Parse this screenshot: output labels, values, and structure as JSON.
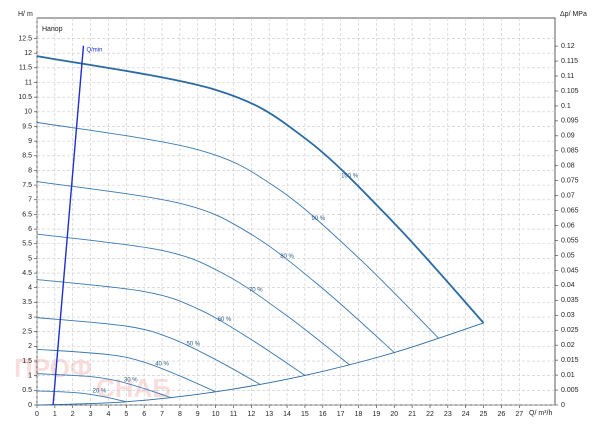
{
  "chart_data": {
    "type": "line",
    "title": "Напор",
    "xlabel": "Q/ m³/h",
    "ylabel": "H/ m",
    "y2label": "Δp/ MPa",
    "xlim": [
      0,
      29
    ],
    "ylim": [
      0,
      13.2
    ],
    "y2lim": [
      0,
      0.1294
    ],
    "xticks": [
      0,
      1,
      2,
      3,
      4,
      5,
      6,
      7,
      8,
      9,
      10,
      11,
      12,
      13,
      14,
      15,
      16,
      17,
      18,
      19,
      20,
      21,
      22,
      23,
      24,
      25,
      26,
      27
    ],
    "yticks": [
      0,
      0.5,
      1,
      1.5,
      2,
      2.5,
      3,
      3.5,
      4,
      4.5,
      5,
      5.5,
      6,
      6.5,
      7,
      7.5,
      8,
      8.5,
      9,
      9.5,
      10,
      10.5,
      11,
      11.5,
      12,
      12.5
    ],
    "y2ticks": [
      0,
      0.005,
      0.01,
      0.015,
      0.02,
      0.025,
      0.03,
      0.035,
      0.04,
      0.045,
      0.05,
      0.055,
      0.06,
      0.065,
      0.07,
      0.075,
      0.08,
      0.085,
      0.09,
      0.095,
      0.1,
      0.105,
      0.11,
      0.115,
      0.12
    ],
    "grid": true,
    "series": [
      {
        "name": "100 %",
        "color": "#2b6aa3",
        "x": [
          0,
          10,
          15,
          20,
          25
        ],
        "values": [
          11.9,
          10.75,
          9.1,
          6.2,
          2.8
        ]
      },
      {
        "name": "90 %",
        "color": "#3a78b0",
        "x": [
          0,
          9,
          13.5,
          18,
          22.5
        ],
        "values": [
          9.64,
          8.71,
          7.37,
          5.02,
          2.27
        ]
      },
      {
        "name": "80 %",
        "color": "#3a78b0",
        "x": [
          0,
          8,
          12,
          16,
          20
        ],
        "values": [
          7.62,
          6.88,
          5.82,
          3.97,
          1.79
        ]
      },
      {
        "name": "70 %",
        "color": "#3a78b0",
        "x": [
          0,
          7,
          10.5,
          14,
          17.5
        ],
        "values": [
          5.83,
          5.27,
          4.46,
          3.04,
          1.37
        ]
      },
      {
        "name": "60 %",
        "color": "#3a78b0",
        "x": [
          0,
          6,
          9,
          12,
          15
        ],
        "values": [
          4.28,
          3.87,
          3.28,
          2.23,
          1.01
        ]
      },
      {
        "name": "50 %",
        "color": "#3a78b0",
        "x": [
          0,
          5,
          7.5,
          10,
          12.5
        ],
        "values": [
          2.98,
          2.69,
          2.28,
          1.55,
          0.7
        ]
      },
      {
        "name": "40 %",
        "color": "#3a78b0",
        "x": [
          0,
          4,
          6,
          8,
          10
        ],
        "values": [
          1.9,
          1.72,
          1.46,
          0.99,
          0.45
        ]
      },
      {
        "name": "30 %",
        "color": "#3a78b0",
        "x": [
          0,
          3,
          4.5,
          6,
          7.5
        ],
        "values": [
          1.07,
          0.97,
          0.82,
          0.56,
          0.25
        ]
      },
      {
        "name": "20 %",
        "color": "#3a78b0",
        "x": [
          0,
          2,
          3,
          4,
          5
        ],
        "values": [
          0.48,
          0.43,
          0.36,
          0.25,
          0.11
        ]
      },
      {
        "color": "#2b6aa3",
        "x": [
          0,
          5,
          10,
          15,
          20,
          25
        ],
        "values": [
          0,
          0.11,
          0.45,
          1.01,
          1.79,
          2.8
        ]
      },
      {
        "name": "Q/min",
        "color": "#1f2fd0",
        "x": [
          0.9,
          2.6
        ],
        "values": [
          0,
          12.25
        ]
      }
    ],
    "watermark": [
      "ПРОФ",
      "СНАБ"
    ]
  }
}
